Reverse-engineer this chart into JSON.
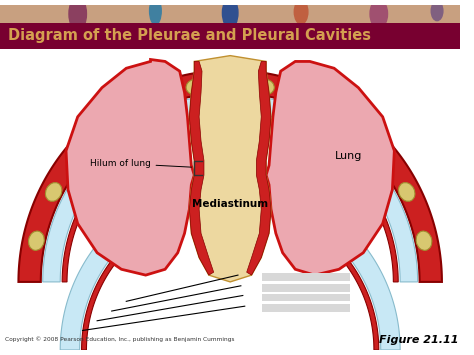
{
  "title": "Diagram of the Pleurae and Pleural Cavities",
  "title_color": "#D4A050",
  "title_bg_color": "#780030",
  "fig_bg_color": "#FFFFFF",
  "copyright": "Copyright © 2008 Pearson Education, Inc., publishing as Benjamin Cummings",
  "figure_label": "Figure 21.11",
  "lung_fill": "#ECA8B0",
  "lung_border": "#CC1111",
  "pleural_fill": "#C8E8F5",
  "mediastinum_fill": "#EDD8A0",
  "chest_wall_fill": "#CC2020",
  "rib_fill": "#D8C870",
  "rib_border": "#A09030",
  "label_hilum": "Hilum of lung",
  "label_lung": "Lung",
  "label_mediastinum": "Mediastinum",
  "annotation_color": "#000000",
  "white_bg": "#FFFFFF",
  "light_gray_label": "#D8D8D8"
}
